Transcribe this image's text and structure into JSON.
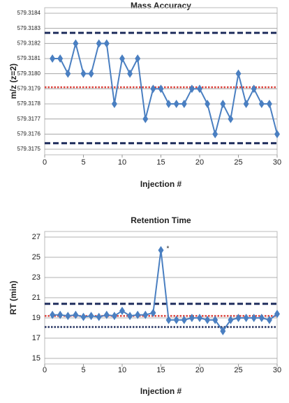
{
  "chart_data": [
    {
      "type": "line",
      "title": "Mass Accuracy",
      "x_label": "Injection #",
      "y_label": "m/z (z=2)",
      "x": [
        1,
        2,
        3,
        4,
        5,
        6,
        7,
        8,
        9,
        10,
        11,
        12,
        13,
        14,
        15,
        16,
        17,
        18,
        19,
        20,
        21,
        22,
        23,
        24,
        25,
        26,
        27,
        28,
        29,
        30
      ],
      "series": [
        {
          "color": "#4a7fc1",
          "values": [
            579.3181,
            579.3181,
            579.318,
            579.3182,
            579.318,
            579.318,
            579.3182,
            579.3182,
            579.3178,
            579.3181,
            579.318,
            579.3181,
            579.3177,
            579.3179,
            579.3179,
            579.3178,
            579.3178,
            579.3178,
            579.3179,
            579.3179,
            579.3178,
            579.3176,
            579.3178,
            579.3177,
            579.318,
            579.3178,
            579.3179,
            579.3178,
            579.3178,
            579.3176
          ]
        }
      ],
      "ref_lines": [
        {
          "value": 579.31827,
          "color": "#1f2d5c",
          "style": "dashed"
        },
        {
          "value": 579.31791,
          "color": "#d9403a",
          "style": "dotted"
        },
        {
          "value": 579.31754,
          "color": "#1f2d5c",
          "style": "dashed"
        }
      ],
      "xlim": [
        0,
        30
      ],
      "xticks": [
        0,
        5,
        10,
        15,
        20,
        25,
        30
      ],
      "ylim": [
        579.3175,
        579.3184
      ],
      "yticks": [
        579.3175,
        579.3176,
        579.3177,
        579.3178,
        579.3179,
        {
          "value": 579.318,
          "label": "579.3180"
        },
        579.3181,
        579.3182,
        579.3183,
        579.3184
      ],
      "grid": true
    },
    {
      "type": "line",
      "title": "Retention Time",
      "x_label": "Injection #",
      "y_label": "RT (min)",
      "x": [
        1,
        2,
        3,
        4,
        5,
        6,
        7,
        8,
        9,
        10,
        11,
        12,
        13,
        14,
        15,
        16,
        17,
        18,
        19,
        20,
        21,
        22,
        23,
        24,
        25,
        26,
        27,
        28,
        29,
        30
      ],
      "series": [
        {
          "color": "#4a7fc1",
          "values": [
            19.3,
            19.3,
            19.2,
            19.3,
            19.1,
            19.2,
            19.1,
            19.3,
            19.2,
            19.7,
            19.2,
            19.3,
            19.3,
            19.5,
            25.7,
            18.8,
            18.8,
            18.8,
            19.0,
            19.0,
            18.8,
            18.8,
            17.7,
            18.8,
            19.0,
            19.0,
            19.0,
            19.0,
            18.8,
            19.4
          ]
        }
      ],
      "ref_lines": [
        {
          "value": 20.4,
          "color": "#1f2d5c",
          "style": "dashed"
        },
        {
          "value": 19.2,
          "color": "#d9403a",
          "style": "dotted"
        },
        {
          "value": 18.1,
          "color": "#1f2d5c",
          "style": "dotted"
        }
      ],
      "annotations": [
        {
          "text": "*",
          "x": 15,
          "y": 25.7,
          "color": "#d9403a"
        }
      ],
      "xlim": [
        0,
        30
      ],
      "xticks": [
        0,
        5,
        10,
        15,
        20,
        25,
        30
      ],
      "ylim": [
        15,
        27
      ],
      "yticks": [
        15,
        17,
        19,
        21,
        23,
        25,
        27
      ],
      "grid": true
    }
  ]
}
